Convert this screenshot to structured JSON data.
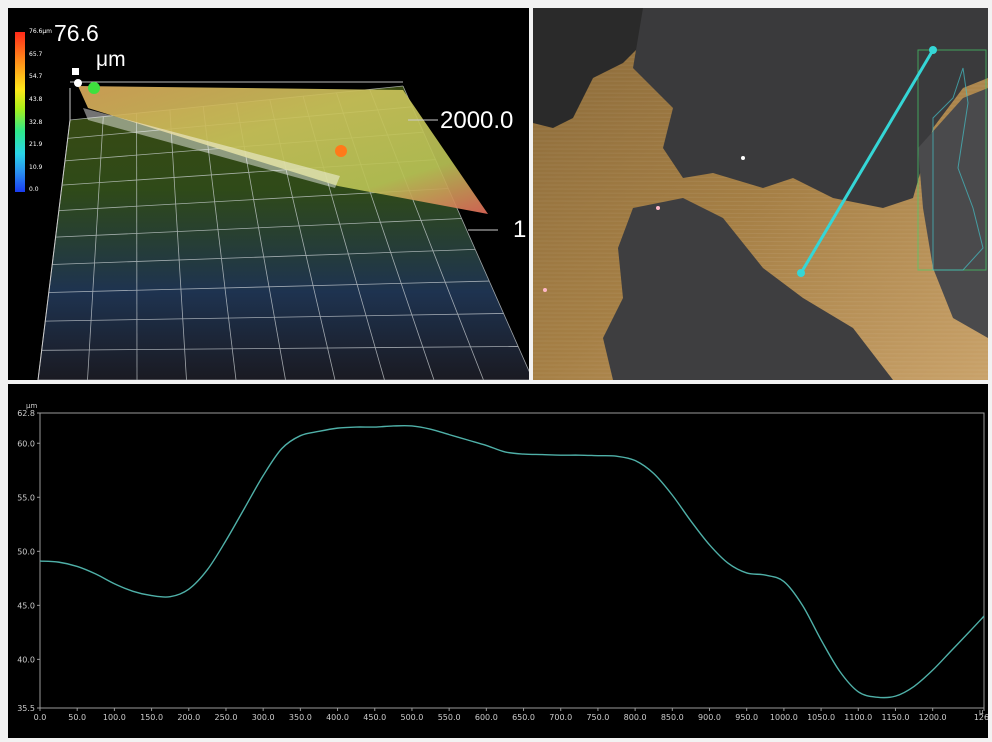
{
  "view3d": {
    "colorbar_ticks": [
      "76.6μm",
      "65.7",
      "54.7",
      "43.8",
      "32.8",
      "21.9",
      "10.9",
      "0.0"
    ],
    "z_max_value": "76.6",
    "z_unit": "μm",
    "axis_label_a": "2000.0",
    "axis_label_b": "1"
  },
  "camera": {
    "profile_line_color": "#35d6d6"
  },
  "profile": {
    "unit_y": "μm",
    "unit_x": "μ",
    "line_color": "#4fb0a8"
  },
  "chart_data": {
    "type": "line",
    "title": "",
    "xlabel": "",
    "ylabel": "",
    "xlim": [
      0,
      1269
    ],
    "ylim": [
      35.5,
      62.8
    ],
    "x_ticks": [
      "0.0",
      "50.0",
      "100.0",
      "150.0",
      "200.0",
      "250.0",
      "300.0",
      "350.0",
      "400.0",
      "450.0",
      "500.0",
      "550.0",
      "600.0",
      "650.0",
      "700.0",
      "750.0",
      "800.0",
      "850.0",
      "900.0",
      "950.0",
      "1000.0",
      "1050.0",
      "1100.0",
      "1150.0",
      "1200.0",
      "1269"
    ],
    "y_ticks": [
      "62.8",
      "60.0",
      "55.0",
      "50.0",
      "45.0",
      "40.0",
      "35.5"
    ],
    "series": [
      {
        "x": [
          0,
          25,
          50,
          75,
          100,
          125,
          150,
          175,
          200,
          225,
          250,
          275,
          300,
          325,
          350,
          375,
          400,
          425,
          450,
          475,
          500,
          525,
          550,
          575,
          600,
          625,
          650,
          675,
          700,
          725,
          750,
          775,
          800,
          825,
          850,
          875,
          900,
          925,
          950,
          975,
          1000,
          1025,
          1050,
          1075,
          1100,
          1125,
          1150,
          1175,
          1200,
          1225,
          1250,
          1269
        ],
        "y": [
          49.1,
          49.0,
          48.6,
          47.9,
          47.0,
          46.3,
          45.9,
          45.8,
          46.5,
          48.3,
          51.0,
          54.0,
          57.0,
          59.5,
          60.7,
          61.1,
          61.4,
          61.5,
          61.5,
          61.6,
          61.6,
          61.3,
          60.8,
          60.3,
          59.8,
          59.2,
          59.0,
          58.95,
          58.9,
          58.9,
          58.85,
          58.8,
          58.4,
          57.2,
          55.2,
          52.8,
          50.6,
          48.9,
          48.0,
          47.8,
          47.2,
          45.0,
          41.8,
          38.9,
          37.0,
          36.5,
          36.6,
          37.5,
          39.0,
          40.8,
          42.6,
          44.0
        ]
      }
    ]
  }
}
